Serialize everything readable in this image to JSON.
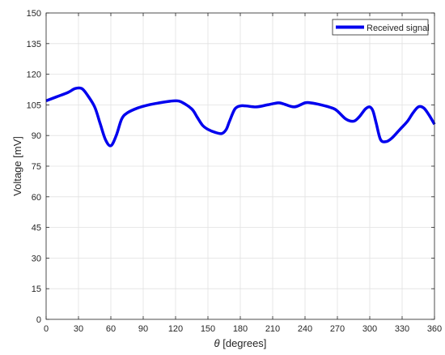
{
  "chart_data": {
    "type": "line",
    "title": "",
    "xlabel_symbol": "θ",
    "xlabel_rest": " [degrees]",
    "ylabel": "Voltage [mV]",
    "xlim": [
      0,
      360
    ],
    "ylim": [
      0,
      150
    ],
    "xticks": [
      0,
      30,
      60,
      90,
      120,
      150,
      180,
      210,
      240,
      270,
      300,
      330,
      360
    ],
    "yticks": [
      0,
      15,
      30,
      45,
      60,
      75,
      90,
      105,
      120,
      135,
      150
    ],
    "grid": true,
    "legend_position": "top-right",
    "series": [
      {
        "name": "Received signal",
        "color": "#0000ee",
        "x": [
          0,
          10,
          20,
          27,
          33,
          38,
          45,
          50,
          55,
          60,
          65,
          70,
          75,
          85,
          95,
          105,
          115,
          120,
          125,
          135,
          140,
          145,
          150,
          157,
          163,
          167,
          170,
          175,
          180,
          185,
          195,
          205,
          215,
          220,
          230,
          240,
          245,
          255,
          265,
          270,
          278,
          285,
          290,
          296,
          300,
          303,
          306,
          310,
          315,
          320,
          328,
          335,
          340,
          345,
          350,
          355,
          360
        ],
        "y": [
          107,
          109,
          111,
          113,
          113,
          110,
          104,
          96,
          88,
          85,
          90,
          98,
          101,
          103.5,
          105,
          106,
          106.8,
          107,
          106.5,
          103,
          99,
          95,
          93,
          91.5,
          91,
          93,
          97,
          103,
          104.5,
          104.5,
          104,
          105,
          106,
          105.5,
          104,
          106,
          106,
          105,
          103.5,
          102,
          98,
          97,
          99,
          103,
          104,
          102,
          96,
          88,
          87,
          88.5,
          93,
          97,
          101,
          104,
          103.5,
          100,
          95.5
        ]
      }
    ]
  }
}
